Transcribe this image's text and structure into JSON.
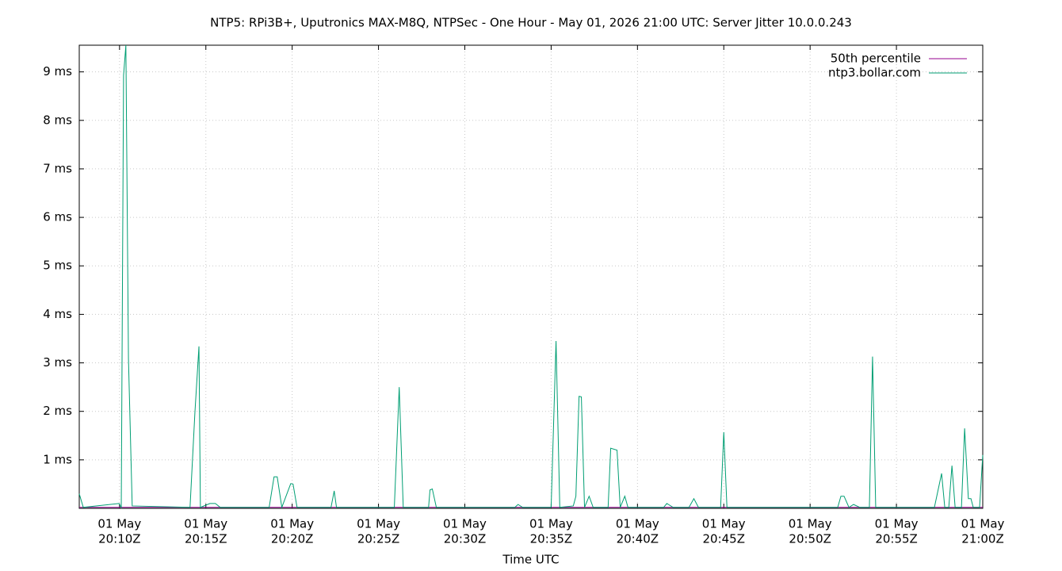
{
  "chart_data": {
    "type": "line",
    "title": "NTP5: RPi3B+, Uputronics MAX-M8Q, NTPSec - One Hour - May 01, 2026 21:00 UTC: Server Jitter 10.0.0.243",
    "x_label": "Time UTC",
    "xlim": [
      "20:07:40",
      "21:00:00"
    ],
    "ylim": [
      0,
      9.55
    ],
    "grid": true,
    "legend": "top-right",
    "xticks": [
      {
        "value": "20:10:00",
        "label": [
          "01 May",
          "20:10Z"
        ]
      },
      {
        "value": "20:15:00",
        "label": [
          "01 May",
          "20:15Z"
        ]
      },
      {
        "value": "20:20:00",
        "label": [
          "01 May",
          "20:20Z"
        ]
      },
      {
        "value": "20:25:00",
        "label": [
          "01 May",
          "20:25Z"
        ]
      },
      {
        "value": "20:30:00",
        "label": [
          "01 May",
          "20:30Z"
        ]
      },
      {
        "value": "20:35:00",
        "label": [
          "01 May",
          "20:35Z"
        ]
      },
      {
        "value": "20:40:00",
        "label": [
          "01 May",
          "20:40Z"
        ]
      },
      {
        "value": "20:45:00",
        "label": [
          "01 May",
          "20:45Z"
        ]
      },
      {
        "value": "20:50:00",
        "label": [
          "01 May",
          "20:50Z"
        ]
      },
      {
        "value": "20:55:00",
        "label": [
          "01 May",
          "20:55Z"
        ]
      },
      {
        "value": "21:00:00",
        "label": [
          "01 May",
          "21:00Z"
        ]
      }
    ],
    "yticks": [
      {
        "value": 1,
        "label": "1 ms"
      },
      {
        "value": 2,
        "label": "2 ms"
      },
      {
        "value": 3,
        "label": "3 ms"
      },
      {
        "value": 4,
        "label": "4 ms"
      },
      {
        "value": 5,
        "label": "5 ms"
      },
      {
        "value": 6,
        "label": "6 ms"
      },
      {
        "value": 7,
        "label": "7 ms"
      },
      {
        "value": 8,
        "label": "8 ms"
      },
      {
        "value": 9,
        "label": "9 ms"
      }
    ],
    "series": [
      {
        "name": "50th percentile",
        "color": "#94008f",
        "x": [
          "20:07:40",
          "21:00:00"
        ],
        "values": [
          0.02,
          0.02
        ]
      },
      {
        "name": "ntp3.bollar.com",
        "color": "#009e73",
        "x": [
          "20:07:40",
          "20:07:54",
          "20:09:58",
          "20:10:06",
          "20:10:14",
          "20:10:22",
          "20:10:31",
          "20:10:44",
          "20:14:05",
          "20:14:22",
          "20:14:36",
          "20:14:41",
          "20:15:14",
          "20:15:33",
          "20:15:50",
          "20:18:40",
          "20:18:57",
          "20:19:08",
          "20:19:24",
          "20:19:55",
          "20:20:03",
          "20:20:17",
          "20:22:15",
          "20:22:26",
          "20:22:34",
          "20:25:55",
          "20:26:12",
          "20:26:26",
          "20:27:54",
          "20:27:59",
          "20:28:07",
          "20:28:21",
          "20:32:54",
          "20:33:05",
          "20:33:21",
          "20:35:00",
          "20:35:17",
          "20:35:30",
          "20:36:17",
          "20:36:26",
          "20:36:37",
          "20:36:45",
          "20:36:56",
          "20:37:12",
          "20:37:26",
          "20:38:18",
          "20:38:27",
          "20:38:49",
          "20:39:00",
          "20:39:16",
          "20:39:27",
          "20:41:31",
          "20:41:42",
          "20:42:04",
          "20:42:59",
          "20:43:16",
          "20:43:32",
          "20:44:49",
          "20:45:00",
          "20:45:11",
          "20:51:36",
          "20:51:47",
          "20:51:58",
          "20:52:15",
          "20:52:31",
          "20:52:53",
          "20:53:26",
          "20:53:37",
          "20:53:48",
          "20:57:12",
          "20:57:37",
          "20:57:48",
          "20:58:02",
          "20:58:13",
          "20:58:24",
          "20:58:46",
          "20:58:57",
          "20:59:10",
          "20:59:19",
          "20:59:27",
          "20:59:49",
          "21:00:00"
        ],
        "values": [
          0.3,
          0.02,
          0.1,
          0.02,
          8.93,
          9.55,
          3.09,
          0.05,
          0.02,
          1.98,
          3.34,
          0.02,
          0.1,
          0.1,
          0.02,
          0.02,
          0.65,
          0.65,
          0.02,
          0.51,
          0.5,
          0.02,
          0.02,
          0.36,
          0.02,
          0.02,
          2.5,
          0.02,
          0.02,
          0.38,
          0.4,
          0.02,
          0.02,
          0.08,
          0.02,
          0.02,
          3.45,
          0.02,
          0.05,
          0.25,
          2.31,
          2.3,
          0.02,
          0.25,
          0.02,
          0.02,
          1.24,
          1.2,
          0.02,
          0.25,
          0.02,
          0.02,
          0.1,
          0.02,
          0.02,
          0.2,
          0.02,
          0.02,
          1.57,
          0.02,
          0.02,
          0.25,
          0.25,
          0.02,
          0.08,
          0.02,
          0.02,
          3.13,
          0.02,
          0.02,
          0.72,
          0.02,
          0.02,
          0.88,
          0.02,
          0.02,
          1.65,
          0.2,
          0.2,
          0.02,
          0.02,
          1.1
        ]
      }
    ]
  }
}
